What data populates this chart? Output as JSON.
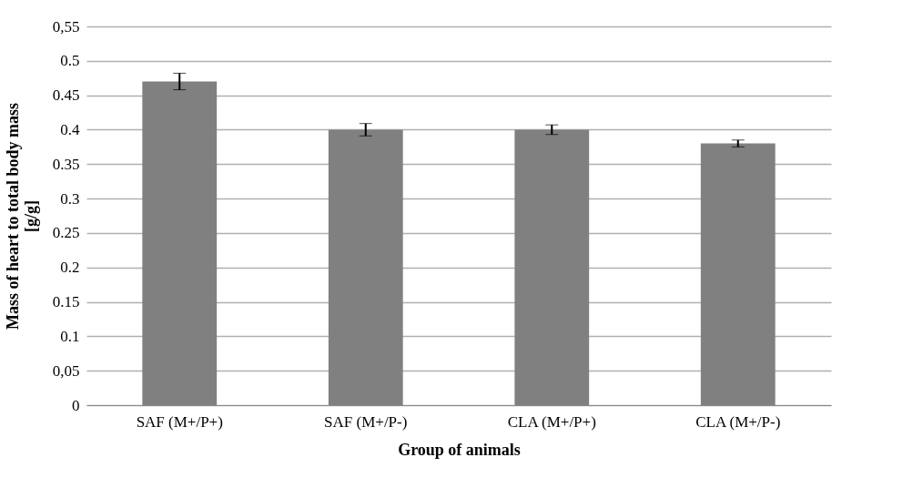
{
  "chart_data": {
    "type": "bar",
    "xlabel": "Group of animals",
    "ylabel": "Mass of heart to total body mass [g/g]",
    "categories": [
      "SAF (M+/P+)",
      "SAF (M+/P-)",
      "CLA (M+/P+)",
      "CLA (M+/P-)"
    ],
    "values": [
      0.47,
      0.4,
      0.4,
      0.38
    ],
    "errors": [
      0.012,
      0.009,
      0.007,
      0.005
    ],
    "color": "#808080",
    "ylim": [
      0,
      0.55
    ],
    "yticks": [
      0,
      {
        "value": 0.05,
        "label": "0,05"
      },
      0.1,
      0.15,
      0.2,
      0.25,
      0.3,
      0.35,
      0.4,
      0.45,
      0.5,
      {
        "value": 0.55,
        "label": "0,55"
      }
    ],
    "grid": "y"
  }
}
